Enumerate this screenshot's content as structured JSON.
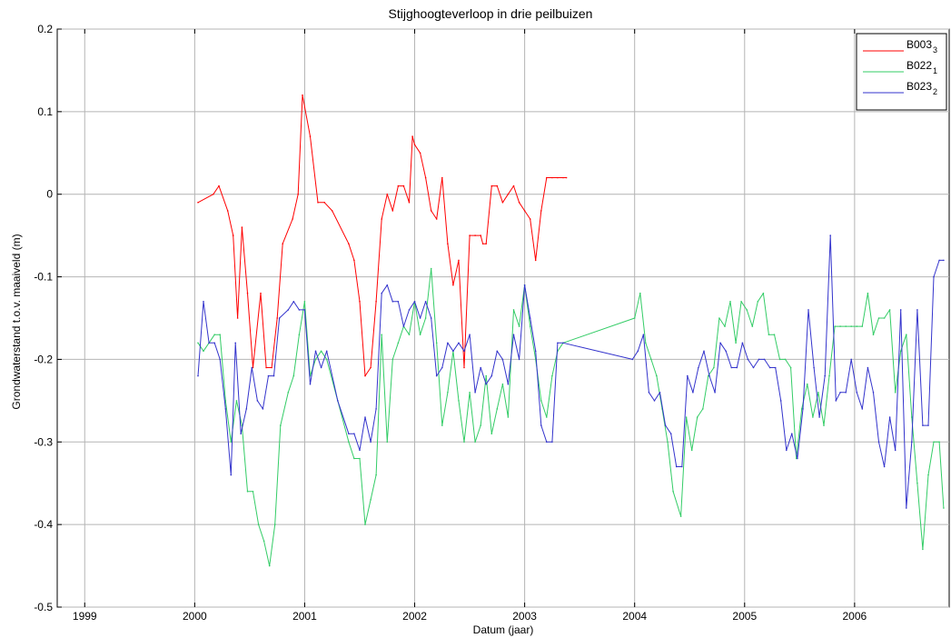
{
  "chart_data": {
    "type": "line",
    "title": "Stijghoogteverloop in drie peilbuizen",
    "xlabel": "Datum (jaar)",
    "ylabel": "Grondwaterstand t.o.v. maaiveld (m)",
    "xlim": [
      1998.75,
      2006.86
    ],
    "ylim": [
      -0.5,
      0.2
    ],
    "xticks": [
      1999,
      2000,
      2001,
      2002,
      2003,
      2004,
      2005,
      2006
    ],
    "xtick_labels": [
      "1999",
      "2000",
      "2001",
      "2002",
      "2003",
      "2004",
      "2005",
      "2006"
    ],
    "yticks": [
      -0.5,
      -0.4,
      -0.3,
      -0.2,
      -0.1,
      0,
      0.1,
      0.2
    ],
    "ytick_labels": [
      "-0.5",
      "-0.4",
      "-0.3",
      "-0.2",
      "-0.1",
      "0",
      "0.1",
      "0.2"
    ],
    "grid": true,
    "legend_position": "top-right",
    "series": [
      {
        "name": "B003",
        "name_sub": "3",
        "color": "#ff0000",
        "x": [
          2000.03,
          2000.17,
          2000.22,
          2000.3,
          2000.35,
          2000.39,
          2000.43,
          2000.48,
          2000.53,
          2000.6,
          2000.65,
          2000.7,
          2000.75,
          2000.8,
          2000.89,
          2000.94,
          2000.98,
          2001.05,
          2001.12,
          2001.18,
          2001.25,
          2001.4,
          2001.45,
          2001.5,
          2001.55,
          2001.6,
          2001.65,
          2001.7,
          2001.75,
          2001.8,
          2001.85,
          2001.9,
          2001.95,
          2001.98,
          2002.0,
          2002.05,
          2002.1,
          2002.15,
          2002.2,
          2002.25,
          2002.3,
          2002.35,
          2002.4,
          2002.45,
          2002.5,
          2002.55,
          2002.6,
          2002.62,
          2002.65,
          2002.7,
          2002.75,
          2002.8,
          2002.85,
          2002.9,
          2002.95,
          2003.0,
          2003.05,
          2003.1,
          2003.15,
          2003.2,
          2003.25,
          2003.3,
          2003.35,
          2003.38
        ],
        "y": [
          -0.01,
          0.0,
          0.01,
          -0.02,
          -0.05,
          -0.15,
          -0.04,
          -0.12,
          -0.21,
          -0.12,
          -0.21,
          -0.21,
          -0.15,
          -0.06,
          -0.03,
          0.0,
          0.12,
          0.07,
          -0.01,
          -0.01,
          -0.02,
          -0.06,
          -0.08,
          -0.13,
          -0.22,
          -0.21,
          -0.13,
          -0.03,
          0.0,
          -0.02,
          0.01,
          0.01,
          -0.01,
          0.07,
          0.06,
          0.05,
          0.02,
          -0.02,
          -0.03,
          0.02,
          -0.06,
          -0.11,
          -0.08,
          -0.21,
          -0.05,
          -0.05,
          -0.05,
          -0.06,
          -0.06,
          0.01,
          0.01,
          -0.01,
          0.0,
          0.01,
          -0.01,
          -0.02,
          -0.03,
          -0.08,
          -0.02,
          0.02,
          0.02,
          0.02,
          0.02,
          0.02
        ]
      },
      {
        "name": "B022",
        "name_sub": "1",
        "color": "#33cc66",
        "x": [
          2000.03,
          2000.08,
          2000.13,
          2000.18,
          2000.23,
          2000.28,
          2000.33,
          2000.38,
          2000.43,
          2000.48,
          2000.53,
          2000.58,
          2000.63,
          2000.68,
          2000.73,
          2000.78,
          2000.85,
          2000.9,
          2000.95,
          2001.0,
          2001.05,
          2001.1,
          2001.15,
          2001.2,
          2001.3,
          2001.4,
          2001.45,
          2001.5,
          2001.55,
          2001.6,
          2001.65,
          2001.7,
          2001.75,
          2001.8,
          2001.85,
          2001.9,
          2001.95,
          2002.0,
          2002.05,
          2002.1,
          2002.15,
          2002.2,
          2002.25,
          2002.3,
          2002.35,
          2002.4,
          2002.45,
          2002.5,
          2002.55,
          2002.6,
          2002.65,
          2002.7,
          2002.75,
          2002.8,
          2002.85,
          2002.9,
          2002.95,
          2003.0,
          2003.05,
          2003.1,
          2003.15,
          2003.2,
          2003.25,
          2003.3,
          2003.35,
          2004.0,
          2004.05,
          2004.1,
          2004.15,
          2004.2,
          2004.25,
          2004.3,
          2004.35,
          2004.42,
          2004.47,
          2004.52,
          2004.57,
          2004.62,
          2004.67,
          2004.72,
          2004.77,
          2004.82,
          2004.87,
          2004.92,
          2004.97,
          2005.02,
          2005.07,
          2005.12,
          2005.17,
          2005.22,
          2005.27,
          2005.32,
          2005.37,
          2005.42,
          2005.47,
          2005.52,
          2005.57,
          2005.62,
          2005.67,
          2005.72,
          2005.77,
          2005.82,
          2005.87,
          2005.92,
          2005.97,
          2006.02,
          2006.07,
          2006.12,
          2006.17,
          2006.22,
          2006.27,
          2006.32,
          2006.37,
          2006.42,
          2006.47,
          2006.52,
          2006.57,
          2006.62,
          2006.67,
          2006.72,
          2006.77,
          2006.81
        ],
        "y": [
          -0.18,
          -0.19,
          -0.18,
          -0.17,
          -0.17,
          -0.25,
          -0.3,
          -0.25,
          -0.28,
          -0.36,
          -0.36,
          -0.4,
          -0.42,
          -0.45,
          -0.4,
          -0.28,
          -0.24,
          -0.22,
          -0.17,
          -0.13,
          -0.22,
          -0.2,
          -0.19,
          -0.2,
          -0.25,
          -0.3,
          -0.32,
          -0.32,
          -0.4,
          -0.37,
          -0.34,
          -0.17,
          -0.3,
          -0.2,
          -0.18,
          -0.16,
          -0.17,
          -0.13,
          -0.17,
          -0.15,
          -0.09,
          -0.18,
          -0.28,
          -0.24,
          -0.19,
          -0.25,
          -0.3,
          -0.24,
          -0.3,
          -0.28,
          -0.22,
          -0.29,
          -0.26,
          -0.23,
          -0.27,
          -0.14,
          -0.16,
          -0.11,
          -0.16,
          -0.2,
          -0.25,
          -0.27,
          -0.22,
          -0.19,
          -0.18,
          -0.15,
          -0.12,
          -0.18,
          -0.2,
          -0.22,
          -0.26,
          -0.3,
          -0.36,
          -0.39,
          -0.27,
          -0.31,
          -0.27,
          -0.26,
          -0.22,
          -0.21,
          -0.15,
          -0.16,
          -0.13,
          -0.18,
          -0.13,
          -0.14,
          -0.16,
          -0.13,
          -0.12,
          -0.17,
          -0.17,
          -0.2,
          -0.2,
          -0.21,
          -0.32,
          -0.26,
          -0.23,
          -0.27,
          -0.24,
          -0.28,
          -0.22,
          -0.16,
          -0.16,
          -0.16,
          -0.16,
          -0.16,
          -0.16,
          -0.12,
          -0.17,
          -0.15,
          -0.15,
          -0.14,
          -0.24,
          -0.19,
          -0.17,
          -0.27,
          -0.35,
          -0.43,
          -0.34,
          -0.3,
          -0.3,
          -0.38
        ]
      },
      {
        "name": "B023",
        "name_sub": "2",
        "color": "#3333cc",
        "x": [
          2000.03,
          2000.08,
          2000.13,
          2000.18,
          2000.23,
          2000.28,
          2000.33,
          2000.37,
          2000.42,
          2000.47,
          2000.52,
          2000.57,
          2000.62,
          2000.67,
          2000.72,
          2000.77,
          2000.85,
          2000.9,
          2000.95,
          2001.0,
          2001.05,
          2001.1,
          2001.15,
          2001.2,
          2001.3,
          2001.4,
          2001.45,
          2001.5,
          2001.55,
          2001.6,
          2001.65,
          2001.7,
          2001.75,
          2001.8,
          2001.85,
          2001.9,
          2001.95,
          2002.0,
          2002.05,
          2002.1,
          2002.15,
          2002.2,
          2002.25,
          2002.3,
          2002.35,
          2002.4,
          2002.45,
          2002.5,
          2002.55,
          2002.6,
          2002.65,
          2002.7,
          2002.75,
          2002.8,
          2002.85,
          2002.9,
          2002.95,
          2003.0,
          2003.05,
          2003.1,
          2003.15,
          2003.2,
          2003.25,
          2003.3,
          2003.35,
          2003.98,
          2004.03,
          2004.08,
          2004.13,
          2004.18,
          2004.23,
          2004.28,
          2004.33,
          2004.38,
          2004.43,
          2004.48,
          2004.53,
          2004.58,
          2004.63,
          2004.68,
          2004.73,
          2004.78,
          2004.83,
          2004.88,
          2004.93,
          2004.98,
          2005.03,
          2005.08,
          2005.13,
          2005.18,
          2005.23,
          2005.28,
          2005.33,
          2005.38,
          2005.43,
          2005.48,
          2005.53,
          2005.58,
          2005.63,
          2005.68,
          2005.73,
          2005.78,
          2005.83,
          2005.87,
          2005.92,
          2005.97,
          2006.02,
          2006.07,
          2006.12,
          2006.17,
          2006.22,
          2006.27,
          2006.32,
          2006.37,
          2006.42,
          2006.47,
          2006.52,
          2006.57,
          2006.62,
          2006.67,
          2006.72,
          2006.77,
          2006.81
        ],
        "y": [
          -0.22,
          -0.13,
          -0.18,
          -0.18,
          -0.2,
          -0.26,
          -0.34,
          -0.18,
          -0.29,
          -0.26,
          -0.21,
          -0.25,
          -0.26,
          -0.22,
          -0.22,
          -0.15,
          -0.14,
          -0.13,
          -0.14,
          -0.14,
          -0.23,
          -0.19,
          -0.21,
          -0.19,
          -0.25,
          -0.29,
          -0.29,
          -0.31,
          -0.27,
          -0.3,
          -0.26,
          -0.12,
          -0.11,
          -0.13,
          -0.13,
          -0.16,
          -0.14,
          -0.13,
          -0.15,
          -0.13,
          -0.15,
          -0.22,
          -0.21,
          -0.18,
          -0.19,
          -0.18,
          -0.19,
          -0.17,
          -0.24,
          -0.21,
          -0.23,
          -0.22,
          -0.19,
          -0.2,
          -0.23,
          -0.17,
          -0.2,
          -0.11,
          -0.15,
          -0.19,
          -0.28,
          -0.3,
          -0.3,
          -0.18,
          -0.18,
          -0.2,
          -0.19,
          -0.17,
          -0.24,
          -0.25,
          -0.24,
          -0.28,
          -0.29,
          -0.33,
          -0.33,
          -0.22,
          -0.24,
          -0.21,
          -0.19,
          -0.22,
          -0.24,
          -0.18,
          -0.19,
          -0.21,
          -0.21,
          -0.18,
          -0.2,
          -0.21,
          -0.2,
          -0.2,
          -0.21,
          -0.21,
          -0.25,
          -0.31,
          -0.29,
          -0.32,
          -0.26,
          -0.14,
          -0.21,
          -0.27,
          -0.22,
          -0.05,
          -0.25,
          -0.24,
          -0.24,
          -0.2,
          -0.24,
          -0.26,
          -0.21,
          -0.24,
          -0.3,
          -0.33,
          -0.27,
          -0.31,
          -0.14,
          -0.38,
          -0.3,
          -0.14,
          -0.28,
          -0.28,
          -0.1,
          -0.08,
          -0.08
        ]
      }
    ]
  }
}
